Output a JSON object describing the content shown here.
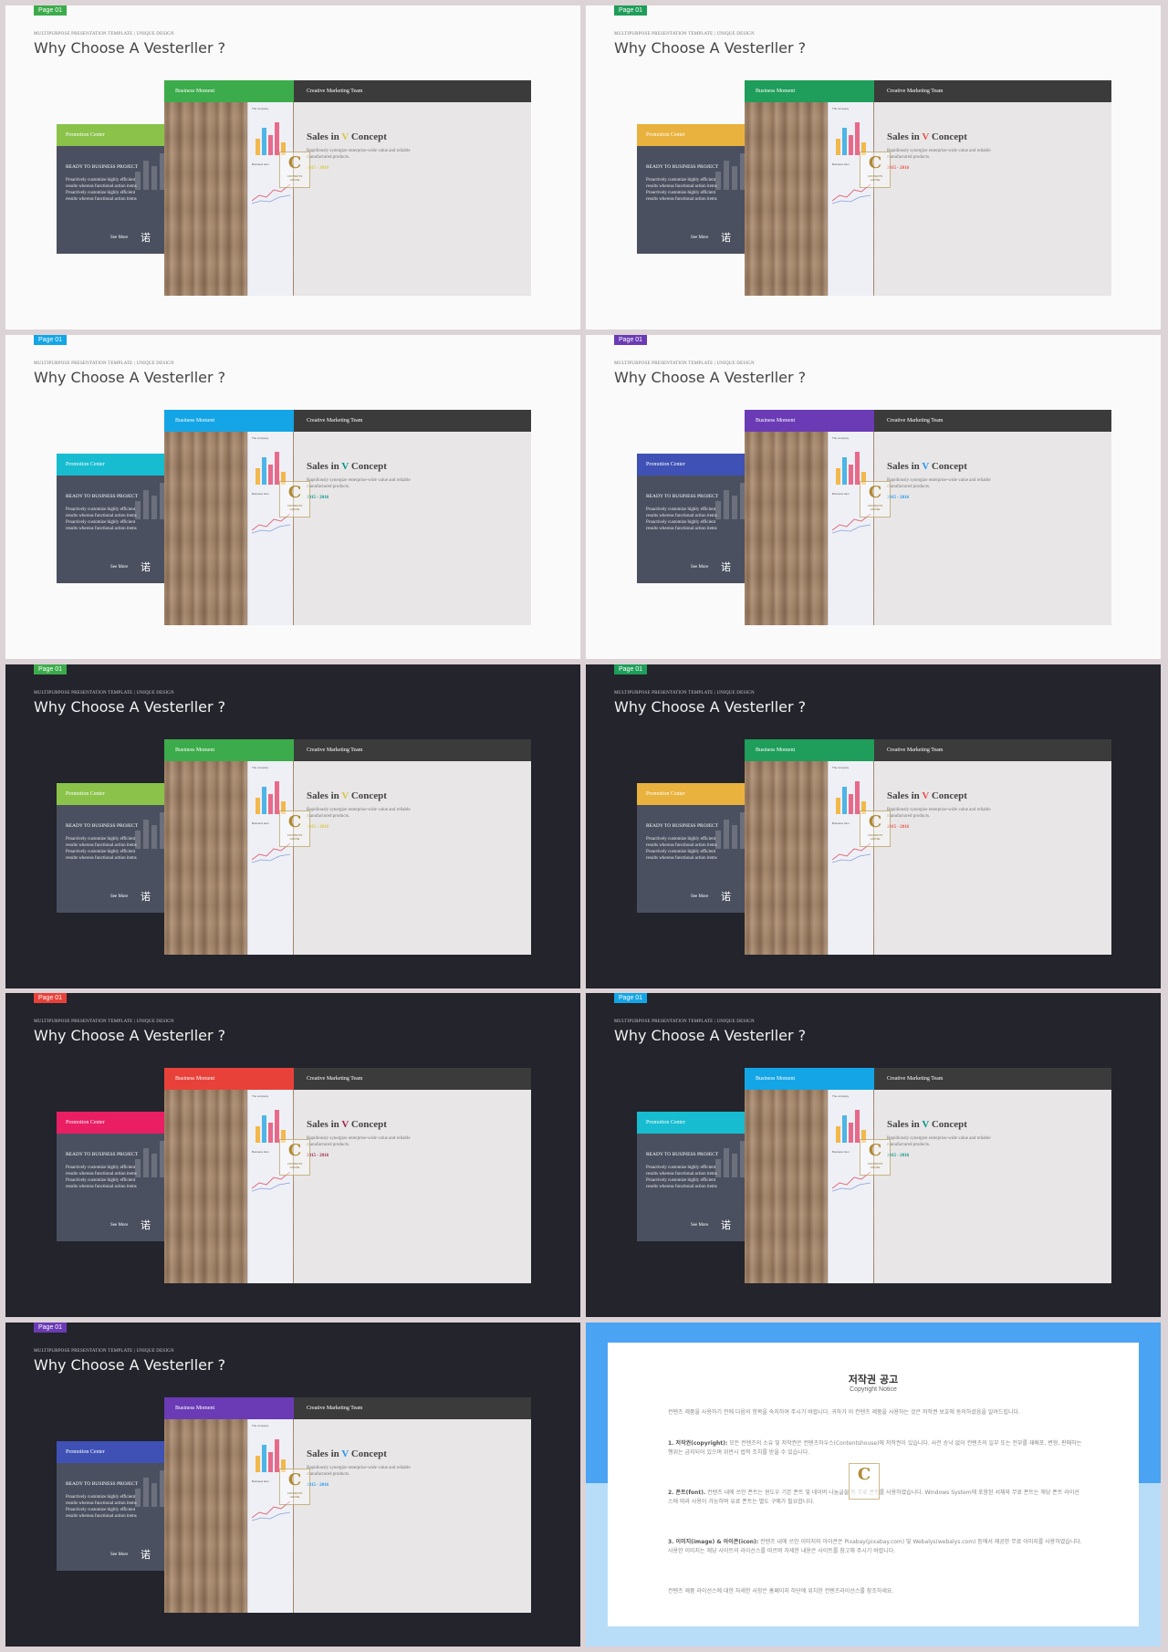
{
  "slides": [
    {
      "page": "Page 01",
      "theme": "light",
      "tag": "#3cab4b",
      "bm": "#3cab4b",
      "side": "#8bc34a",
      "bar": "#d5c944",
      "vcolor": "#d5c944"
    },
    {
      "page": "Page 01",
      "theme": "light",
      "tag": "#1f9d5a",
      "bm": "#1f9d5a",
      "side": "#e9b23e",
      "bar": "#e8524c",
      "vcolor": "#e8524c"
    },
    {
      "page": "Page 01",
      "theme": "light",
      "tag": "#14a5e6",
      "bm": "#14a5e6",
      "side": "#18bcd0",
      "bar": "#069688",
      "vcolor": "#069688"
    },
    {
      "page": "Page 01",
      "theme": "light",
      "tag": "#6b3bb5",
      "bm": "#6b3bb5",
      "side": "#3f51b5",
      "bar": "#2196f3",
      "vcolor": "#2196f3"
    },
    {
      "page": "Page 01",
      "theme": "dark",
      "tag": "#3cab4b",
      "bm": "#3cab4b",
      "side": "#8bc34a",
      "bar": "#d5c944",
      "vcolor": "#d5c944"
    },
    {
      "page": "Page 01",
      "theme": "dark",
      "tag": "#1f9d5a",
      "bm": "#1f9d5a",
      "side": "#e9b23e",
      "bar": "#e8524c",
      "vcolor": "#e8524c"
    },
    {
      "page": "Page 01",
      "theme": "dark",
      "tag": "#e8413a",
      "bm": "#e8413a",
      "side": "#e91e63",
      "bar": "#9c2548",
      "vcolor": "#9c2548"
    },
    {
      "page": "Page 01",
      "theme": "dark",
      "tag": "#14a5e6",
      "bm": "#14a5e6",
      "side": "#18bcd0",
      "bar": "#069688",
      "vcolor": "#069688"
    },
    {
      "page": "Page 01",
      "theme": "dark",
      "tag": "#6b3bb5",
      "bm": "#6b3bb5",
      "side": "#3f51b5",
      "bar": "#2196f3",
      "vcolor": "#2196f3"
    }
  ],
  "common": {
    "subtitle": "MULTIPURPOSE PRESENTATION TEMPLATE | UNIQUE DESIGN",
    "title": "Why Choose A Vesterller ?",
    "business_moment": "Business Moment",
    "creative_team": "Creative Marketing Team",
    "promotion_center": "Promotion Center",
    "ready": "READY TO BUSINESS PROJECT",
    "side_body": [
      "Proactively customize highly efficient",
      "results whereas functional action items",
      "Proactively customize highly efficient",
      "results whereas functional action items"
    ],
    "see_more": "See More",
    "hand_icon": "诺",
    "sales_pre": "Sales in ",
    "sales_v": "V",
    "sales_post": " Concept",
    "desc": "Rapidiously synergize enterprise-wide value and reliable manufactured products.",
    "years": "2015 - 2016",
    "paper_text1": "The company",
    "paper_text2": "Business Item",
    "logo_c": "C",
    "logo_line1": "CONTENTS",
    "logo_line2": "HOUSE"
  },
  "chart_data": {
    "type": "bar",
    "categories": [
      "1",
      "2",
      "3",
      "4",
      "5",
      "6",
      "7",
      "8",
      "9",
      "10"
    ],
    "values": [
      2,
      4,
      6,
      8,
      10,
      12,
      14,
      12,
      10,
      8
    ],
    "highlight_index": 6,
    "highlight_color": "#3b3b3b",
    "ylim": [
      0,
      14
    ]
  },
  "notice": {
    "title": "저작권 공고",
    "subtitle": "Copyright Notice",
    "p0": "컨텐츠 제품을 사용하기 전에 다음의 항목을 숙지하여 주시기 바랍니다. 귀하가 이 컨텐츠 제품을 사용하는 것은 저작권 보호에 동의하셨음을 알려드립니다.",
    "p1_head": "1. 저작권(copyright):",
    "p1": " 모든 컨텐츠의 소유 및 저작권은 컨텐츠하우스(Contentshouse)에 저작권이 있습니다. 사전 승낙 없이 컨텐츠의 일부 또는 전부를 재배포, 변형, 판매하는 행위는 금지되어 있으며 위반시 법적 조치를 받을 수 있습니다.",
    "p2_head": "2. 폰트(font).",
    "p2": " 컨텐츠 내에 쓰인 폰트는 윈도우 기본 폰트 및 네이버 나눔글꼴 등 무료 폰트를 사용하였습니다. Windows System에 포함된 서체와 무료 폰트는 해당 폰트 라이선스에 따라 사용이 가능하며 유료 폰트는 별도 구매가 필요합니다.",
    "p3_head": "3. 이미지(image) & 아이콘(icon):",
    "p3": " 컨텐츠 내에 쓰인 이미지와 아이콘은 Pixabay(pixabay.com) 및 Webalys(webalys.com) 등에서 제공한 무료 이미지를 사용하였습니다. 사용한 이미지는 해당 사이트의 라이선스를 따르며 자세한 내용은 사이트를 참고해 주시기 바랍니다.",
    "p4": "컨텐츠 제품 라이선스에 대한 자세한 사항은 홈페이지 하단에 위치한 컨텐츠라이선스를 참조하세요."
  }
}
